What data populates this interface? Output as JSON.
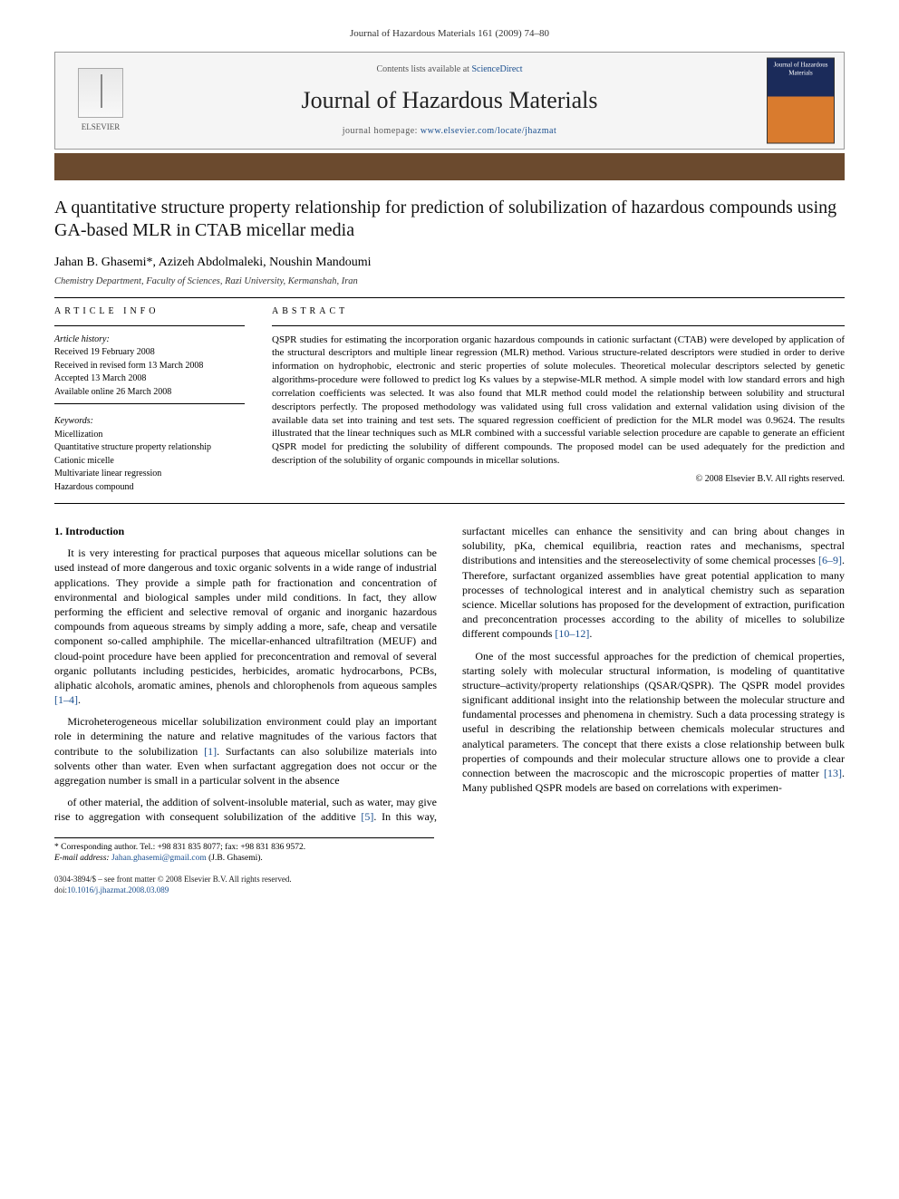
{
  "running_header": "Journal of Hazardous Materials 161 (2009) 74–80",
  "masthead": {
    "contents_line_pre": "Contents lists available at ",
    "contents_link": "ScienceDirect",
    "journal_name": "Journal of Hazardous Materials",
    "homepage_pre": "journal homepage: ",
    "homepage_url": "www.elsevier.com/locate/jhazmat",
    "publisher_label": "ELSEVIER",
    "cover_text": "Journal of Hazardous Materials"
  },
  "title": "A quantitative structure property relationship for prediction of solubilization of hazardous compounds using GA-based MLR in CTAB micellar media",
  "authors_line": "Jahan B. Ghasemi*, Azizeh Abdolmaleki, Noushin Mandoumi",
  "affiliation": "Chemistry Department, Faculty of Sciences, Razi University, Kermanshah, Iran",
  "info": {
    "heading": "ARTICLE INFO",
    "history_label": "Article history:",
    "received": "Received 19 February 2008",
    "revised": "Received in revised form 13 March 2008",
    "accepted": "Accepted 13 March 2008",
    "online": "Available online 26 March 2008",
    "keywords_label": "Keywords:",
    "keywords": [
      "Micellization",
      "Quantitative structure property relationship",
      "Cationic micelle",
      "Multivariate linear regression",
      "Hazardous compound"
    ]
  },
  "abstract": {
    "heading": "ABSTRACT",
    "text": "QSPR studies for estimating the incorporation organic hazardous compounds in cationic surfactant (CTAB) were developed by application of the structural descriptors and multiple linear regression (MLR) method. Various structure-related descriptors were studied in order to derive information on hydrophobic, electronic and steric properties of solute molecules. Theoretical molecular descriptors selected by genetic algorithms-procedure were followed to predict log Ks values by a stepwise-MLR method. A simple model with low standard errors and high correlation coefficients was selected. It was also found that MLR method could model the relationship between solubility and structural descriptors perfectly. The proposed methodology was validated using full cross validation and external validation using division of the available data set into training and test sets. The squared regression coefficient of prediction for the MLR model was 0.9624. The results illustrated that the linear techniques such as MLR combined with a successful variable selection procedure are capable to generate an efficient QSPR model for predicting the solubility of different compounds. The proposed model can be used adequately for the prediction and description of the solubility of organic compounds in micellar solutions.",
    "copyright": "© 2008 Elsevier B.V. All rights reserved."
  },
  "sections": {
    "intro_heading": "1. Introduction",
    "p1": "It is very interesting for practical purposes that aqueous micellar solutions can be used instead of more dangerous and toxic organic solvents in a wide range of industrial applications. They provide a simple path for fractionation and concentration of environmental and biological samples under mild conditions. In fact, they allow performing the efficient and selective removal of organic and inorganic hazardous compounds from aqueous streams by simply adding a more, safe, cheap and versatile component so-called amphiphile. The micellar-enhanced ultrafiltration (MEUF) and cloud-point procedure have been applied for preconcentration and removal of several organic pollutants including pesticides, herbicides, aromatic hydrocarbons, PCBs, aliphatic alcohols, aromatic amines, phenols and chlorophenols from aqueous samples ",
    "p1_cite": "[1–4]",
    "p1_tail": ".",
    "p2": "Microheterogeneous micellar solubilization environment could play an important role in determining the nature and relative magnitudes of the various factors that contribute to the solubilization ",
    "p2_cite": "[1]",
    "p2_tail": ". Surfactants can also solubilize materials into solvents other than water. Even when surfactant aggregation does not occur or the aggregation number is small in a particular solvent in the absence",
    "p3": "of other material, the addition of solvent-insoluble material, such as water, may give rise to aggregation with consequent solubilization of the additive ",
    "p3_cite": "[5]",
    "p3_mid": ". In this way, surfactant micelles can enhance the sensitivity and can bring about changes in solubility, pKa, chemical equilibria, reaction rates and mechanisms, spectral distributions and intensities and the stereoselectivity of some chemical processes ",
    "p3_cite2": "[6–9]",
    "p3_mid2": ". Therefore, surfactant organized assemblies have great potential application to many processes of technological interest and in analytical chemistry such as separation science. Micellar solutions has proposed for the development of extraction, purification and preconcentration processes according to the ability of micelles to solubilize different compounds ",
    "p3_cite3": "[10–12]",
    "p3_tail": ".",
    "p4": "One of the most successful approaches for the prediction of chemical properties, starting solely with molecular structural information, is modeling of quantitative structure–activity/property relationships (QSAR/QSPR). The QSPR model provides significant additional insight into the relationship between the molecular structure and fundamental processes and phenomena in chemistry. Such a data processing strategy is useful in describing the relationship between chemicals molecular structures and analytical parameters. The concept that there exists a close relationship between bulk properties of compounds and their molecular structure allows one to provide a clear connection between the macroscopic and the microscopic properties of matter ",
    "p4_cite": "[13]",
    "p4_tail": ". Many published QSPR models are based on correlations with experimen-"
  },
  "footnote": {
    "corr_label": "* Corresponding author. Tel.: +98 831 835 8077; fax: +98 831 836 9572.",
    "email_label": "E-mail address: ",
    "email": "Jahan.ghasemi@gmail.com",
    "email_tail": " (J.B. Ghasemi)."
  },
  "bottom": {
    "line1": "0304-3894/$ – see front matter © 2008 Elsevier B.V. All rights reserved.",
    "doi_pre": "doi:",
    "doi": "10.1016/j.jhazmat.2008.03.089"
  }
}
